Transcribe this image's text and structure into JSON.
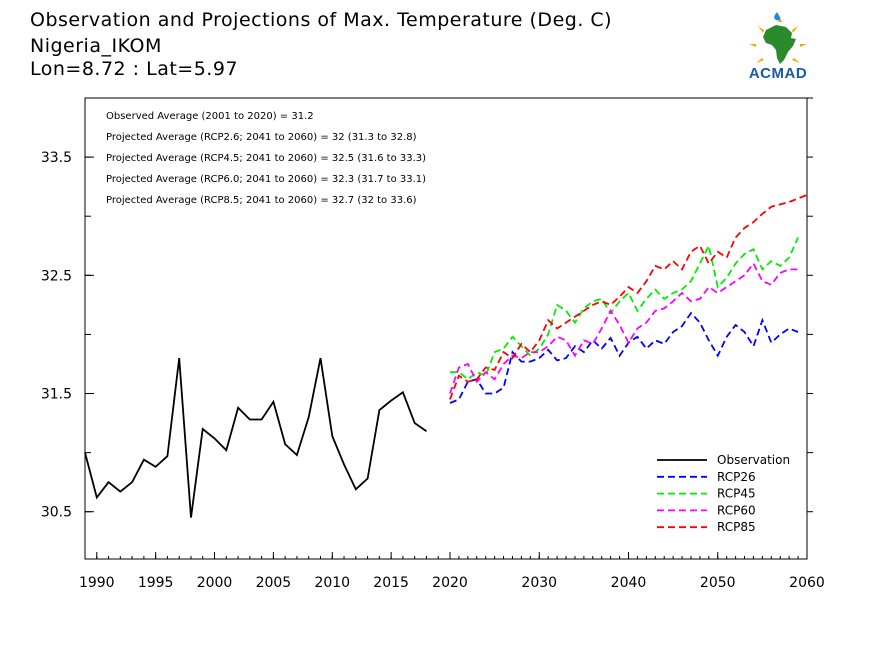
{
  "header": {
    "title": "Observation and Projections of Max. Temperature (Deg. C)",
    "location": "Nigeria_IKOM",
    "coords": "Lon=8.72 : Lat=5.97"
  },
  "logo": {
    "text": "ACMAD"
  },
  "annotations": [
    "Observed Average (2001 to 2020) = 31.2",
    "Projected Average (RCP2.6; 2041 to 2060) = 32 (31.3 to 32.8)",
    "Projected Average (RCP4.5; 2041 to 2060) = 32.5 (31.6 to 33.3)",
    "Projected Average (RCP6.0; 2041 to 2060) = 32.3 (31.7 to 33.1)",
    "Projected Average (RCP8.5; 2041 to 2060) = 32.7 (32 to 33.6)"
  ],
  "chart_data": {
    "type": "line",
    "xlim": [
      1989,
      2060
    ],
    "ylim": [
      30.1,
      34.0
    ],
    "x_ticks_left": [
      1990,
      1995,
      2000,
      2005,
      2010,
      2015,
      2020
    ],
    "x_ticks_right": [
      2030,
      2040,
      2050,
      2060
    ],
    "y_ticks": [
      30.5,
      31.5,
      32.5,
      33.5
    ],
    "y_tick_labels": [
      "30.5",
      "31.5",
      "32.5",
      "33.5"
    ],
    "legend_position": "bottom-right",
    "series": [
      {
        "name": "Observation",
        "color": "#000000",
        "dashed": false,
        "x": [
          1989,
          1990,
          1991,
          1992,
          1993,
          1994,
          1995,
          1996,
          1997,
          1998,
          1999,
          2000,
          2001,
          2002,
          2003,
          2004,
          2005,
          2006,
          2007,
          2008,
          2009,
          2010,
          2011,
          2012,
          2013,
          2014,
          2015,
          2016,
          2017,
          2018,
          2019
        ],
        "y": [
          31.0,
          30.62,
          30.75,
          30.67,
          30.75,
          30.94,
          30.88,
          30.97,
          31.8,
          30.45,
          31.2,
          31.12,
          31.02,
          31.38,
          31.28,
          31.28,
          31.43,
          31.07,
          30.98,
          31.3,
          31.8,
          31.14,
          30.9,
          30.69,
          30.78,
          31.36,
          31.44,
          31.51,
          31.25,
          31.18,
          null
        ]
      },
      {
        "name": "RCP26",
        "color": "#0000ff",
        "dashed": true,
        "x": [
          2020,
          2021,
          2022,
          2023,
          2024,
          2025,
          2026,
          2027,
          2028,
          2029,
          2030,
          2031,
          2032,
          2033,
          2034,
          2035,
          2036,
          2037,
          2038,
          2039,
          2040,
          2041,
          2042,
          2043,
          2044,
          2045,
          2046,
          2047,
          2048,
          2049,
          2050,
          2051,
          2052,
          2053,
          2054,
          2055,
          2056,
          2057,
          2058,
          2059,
          2060
        ],
        "y": [
          31.42,
          31.45,
          31.6,
          31.62,
          31.5,
          31.5,
          31.55,
          31.85,
          31.77,
          31.77,
          31.8,
          31.87,
          31.78,
          31.8,
          31.9,
          31.85,
          31.95,
          31.88,
          31.97,
          31.82,
          31.93,
          31.98,
          31.88,
          31.95,
          31.92,
          32.02,
          32.07,
          32.18,
          32.1,
          31.95,
          31.82,
          31.98,
          32.08,
          32.02,
          31.9,
          32.12,
          31.93,
          32.0,
          32.05,
          32.02,
          null
        ]
      },
      {
        "name": "RCP45",
        "color": "#00ee00",
        "dashed": true,
        "x": [
          2020,
          2021,
          2022,
          2023,
          2024,
          2025,
          2026,
          2027,
          2028,
          2029,
          2030,
          2031,
          2032,
          2033,
          2034,
          2035,
          2036,
          2037,
          2038,
          2039,
          2040,
          2041,
          2042,
          2043,
          2044,
          2045,
          2046,
          2047,
          2048,
          2049,
          2050,
          2051,
          2052,
          2053,
          2054,
          2055,
          2056,
          2057,
          2058,
          2059,
          2060
        ],
        "y": [
          31.68,
          31.68,
          31.62,
          31.68,
          31.65,
          31.85,
          31.88,
          31.98,
          31.9,
          31.82,
          31.88,
          32.0,
          32.25,
          32.2,
          32.1,
          32.22,
          32.28,
          32.3,
          32.18,
          32.28,
          32.35,
          32.2,
          32.3,
          32.38,
          32.3,
          32.35,
          32.38,
          32.45,
          32.6,
          32.75,
          32.4,
          32.48,
          32.6,
          32.68,
          32.72,
          32.55,
          32.62,
          32.58,
          32.65,
          32.82,
          null
        ]
      },
      {
        "name": "RCP60",
        "color": "#ff00ff",
        "dashed": true,
        "x": [
          2020,
          2021,
          2022,
          2023,
          2024,
          2025,
          2026,
          2027,
          2028,
          2029,
          2030,
          2031,
          2032,
          2033,
          2034,
          2035,
          2036,
          2037,
          2038,
          2039,
          2040,
          2041,
          2042,
          2043,
          2044,
          2045,
          2046,
          2047,
          2048,
          2049,
          2050,
          2051,
          2052,
          2053,
          2054,
          2055,
          2056,
          2057,
          2058,
          2059,
          2060
        ],
        "y": [
          31.5,
          31.72,
          31.75,
          31.6,
          31.68,
          31.62,
          31.75,
          31.82,
          31.8,
          31.85,
          31.85,
          31.9,
          31.98,
          31.95,
          31.82,
          31.95,
          31.92,
          32.05,
          32.2,
          32.08,
          31.93,
          32.05,
          32.1,
          32.2,
          32.22,
          32.28,
          32.35,
          32.28,
          32.3,
          32.4,
          32.35,
          32.4,
          32.45,
          32.5,
          32.6,
          32.45,
          32.42,
          32.52,
          32.55,
          32.55,
          null
        ]
      },
      {
        "name": "RCP85",
        "color": "#ff0000",
        "dashed": true,
        "x": [
          2020,
          2021,
          2022,
          2023,
          2024,
          2025,
          2026,
          2027,
          2028,
          2029,
          2030,
          2031,
          2032,
          2033,
          2034,
          2035,
          2036,
          2037,
          2038,
          2039,
          2040,
          2041,
          2042,
          2043,
          2044,
          2045,
          2046,
          2047,
          2048,
          2049,
          2050,
          2051,
          2052,
          2053,
          2054,
          2055,
          2056,
          2057,
          2058,
          2059,
          2060
        ],
        "y": [
          31.45,
          31.65,
          31.6,
          31.62,
          31.72,
          31.7,
          31.85,
          31.8,
          31.92,
          31.85,
          31.95,
          32.12,
          32.05,
          32.1,
          32.15,
          32.2,
          32.25,
          32.28,
          32.25,
          32.32,
          32.4,
          32.35,
          32.45,
          32.58,
          32.55,
          32.62,
          32.55,
          32.7,
          32.75,
          32.6,
          32.7,
          32.65,
          32.82,
          32.9,
          32.95,
          33.02,
          33.08,
          33.1,
          33.12,
          33.15,
          33.18
        ]
      }
    ]
  }
}
